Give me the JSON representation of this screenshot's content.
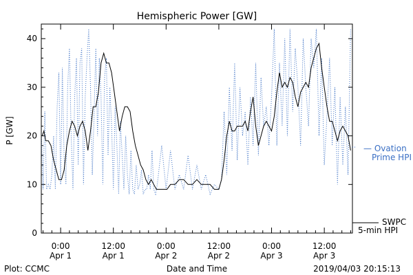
{
  "chart_data": {
    "type": "line",
    "title": "Hemispheric Power [GW]",
    "xlabel": "Date and Time",
    "ylabel": "P [GW]",
    "ylim": [
      0,
      43
    ],
    "xlim": [
      -2.2,
      33.2
    ],
    "yticks": [
      0,
      10,
      20,
      30,
      40
    ],
    "xticks": [
      {
        "x": 0,
        "time": "0:00",
        "date": "Apr 1"
      },
      {
        "x": 6,
        "time": "12:00",
        "date": "Apr 1"
      },
      {
        "x": 12,
        "time": "0:00",
        "date": "Apr 2"
      },
      {
        "x": 18,
        "time": "12:00",
        "date": "Apr 2"
      },
      {
        "x": 24,
        "time": "0:00",
        "date": "Apr 3"
      },
      {
        "x": 30,
        "time": "12:00",
        "date": "Apr 3"
      }
    ],
    "x_unit": "hours since Apr 1 0:00 / 2",
    "series": [
      {
        "name": "SWPC 5-min HPI",
        "style": "solid",
        "color": "#000000",
        "x": [
          -2.1,
          -1.9,
          -1.7,
          -1.4,
          -1.1,
          -0.8,
          -0.5,
          -0.2,
          0.1,
          0.4,
          0.7,
          1.0,
          1.3,
          1.6,
          1.9,
          2.2,
          2.5,
          2.8,
          3.1,
          3.4,
          3.7,
          4.0,
          4.3,
          4.6,
          4.9,
          5.2,
          5.5,
          5.8,
          6.1,
          6.4,
          6.7,
          7.0,
          7.3,
          7.6,
          7.9,
          8.2,
          8.5,
          8.8,
          9.1,
          9.4,
          9.7,
          10.0,
          10.3,
          10.6,
          10.9,
          11.2,
          11.5,
          11.8,
          12.1,
          12.5,
          13.0,
          13.5,
          14.0,
          14.5,
          15.0,
          15.5,
          16.0,
          16.5,
          17.0,
          17.5,
          18.0,
          18.3,
          18.6,
          18.9,
          19.2,
          19.5,
          19.8,
          20.1,
          20.4,
          20.7,
          21.0,
          21.3,
          21.6,
          21.9,
          22.2,
          22.5,
          22.8,
          23.1,
          23.4,
          23.7,
          24.0,
          24.3,
          24.6,
          24.9,
          25.2,
          25.5,
          25.8,
          26.1,
          26.4,
          26.7,
          27.0,
          27.3,
          27.6,
          27.9,
          28.2,
          28.5,
          28.8,
          29.1,
          29.4,
          29.7,
          30.0,
          30.3,
          30.6,
          30.9,
          31.2,
          31.5,
          31.8,
          32.1,
          32.4,
          32.7,
          33.0
        ],
        "y": [
          20,
          21,
          19,
          19,
          18,
          15,
          13,
          11,
          11,
          13,
          18,
          21,
          23,
          22,
          20,
          22,
          23,
          21,
          17,
          21,
          26,
          26,
          29,
          35,
          37,
          35,
          35,
          33,
          29,
          25,
          21,
          24,
          26,
          26,
          25,
          21,
          18,
          16,
          14,
          13,
          11,
          10,
          11,
          10,
          9,
          9,
          9,
          9,
          9,
          10,
          10,
          11,
          11,
          10,
          10,
          11,
          10,
          10,
          10,
          9,
          9,
          11,
          15,
          20,
          23,
          21,
          21,
          22,
          22,
          22,
          23,
          21,
          25,
          28,
          22,
          18,
          20,
          22,
          23,
          22,
          21,
          24,
          29,
          33,
          30,
          31,
          30,
          32,
          31,
          28,
          26,
          29,
          30,
          31,
          30,
          34,
          36,
          38,
          39,
          34,
          30,
          26,
          23,
          23,
          21,
          19,
          21,
          22,
          21,
          20,
          17
        ]
      },
      {
        "name": "Ovation Prime HPI",
        "style": "dotted",
        "color": "#3a6fc4",
        "x": [
          -2.2,
          -2.0,
          -1.8,
          -1.6,
          -1.4,
          -1.2,
          -1.0,
          -0.8,
          -0.6,
          -0.4,
          -0.2,
          0.0,
          0.2,
          0.4,
          0.6,
          0.8,
          1.0,
          1.2,
          1.4,
          1.6,
          1.8,
          2.0,
          2.2,
          2.4,
          2.6,
          2.8,
          3.0,
          3.2,
          3.4,
          3.6,
          3.8,
          4.0,
          4.2,
          4.4,
          4.6,
          4.8,
          5.0,
          5.2,
          5.4,
          5.6,
          5.8,
          6.0,
          6.2,
          6.4,
          6.6,
          6.8,
          7.0,
          7.2,
          7.4,
          7.6,
          7.8,
          8.0,
          8.2,
          8.4,
          8.6,
          8.8,
          9.0,
          9.2,
          9.4,
          9.6,
          9.8,
          10.0,
          10.2,
          10.4,
          10.6,
          10.8,
          11.0,
          11.5,
          12.0,
          12.5,
          13.0,
          13.5,
          14.0,
          14.5,
          15.0,
          15.5,
          16.0,
          16.5,
          17.0,
          17.5,
          18.0,
          18.3,
          18.6,
          18.9,
          19.2,
          19.5,
          19.8,
          20.1,
          20.4,
          20.7,
          21.0,
          21.3,
          21.6,
          21.9,
          22.2,
          22.5,
          22.8,
          23.1,
          23.4,
          23.7,
          24.0,
          24.3,
          24.6,
          24.9,
          25.2,
          25.5,
          25.8,
          26.1,
          26.4,
          26.7,
          27.0,
          27.3,
          27.6,
          27.9,
          28.2,
          28.5,
          28.8,
          29.1,
          29.4,
          29.7,
          30.0,
          30.3,
          30.6,
          30.9,
          31.2,
          31.5,
          31.8,
          32.1,
          32.4,
          32.7,
          33.0
        ],
        "y": [
          21,
          9,
          25,
          9,
          10,
          9,
          12,
          20,
          9,
          26,
          33,
          10,
          34,
          15,
          10,
          30,
          38,
          20,
          9,
          28,
          36,
          14,
          35,
          38,
          10,
          28,
          36,
          42,
          30,
          12,
          24,
          38,
          20,
          36,
          28,
          10,
          32,
          36,
          16,
          30,
          22,
          9,
          26,
          18,
          8,
          23,
          16,
          9,
          20,
          12,
          8,
          17,
          9,
          8,
          14,
          9,
          10,
          13,
          8,
          9,
          9,
          12,
          9,
          17,
          9,
          8,
          10,
          18,
          9,
          17,
          9,
          12,
          9,
          16,
          9,
          14,
          9,
          12,
          8,
          10,
          9,
          11,
          25,
          12,
          30,
          17,
          35,
          15,
          30,
          20,
          25,
          14,
          28,
          18,
          35,
          16,
          32,
          22,
          26,
          18,
          28,
          42,
          18,
          35,
          22,
          40,
          20,
          42,
          25,
          38,
          30,
          18,
          40,
          30,
          22,
          40,
          34,
          42,
          20,
          36,
          14,
          24,
          36,
          18,
          30,
          10,
          28,
          14,
          26,
          12,
          42
        ]
      }
    ],
    "legend": [
      {
        "line1": "— Ovation",
        "line2": "Prime HPI",
        "color": "#3a6fc4"
      },
      {
        "line1": "SWPC",
        "line2": "5-min HPI",
        "color": "#000000"
      }
    ],
    "footer_left": "Plot: CCMC",
    "footer_right": "2019/04/03 20:15:13"
  }
}
